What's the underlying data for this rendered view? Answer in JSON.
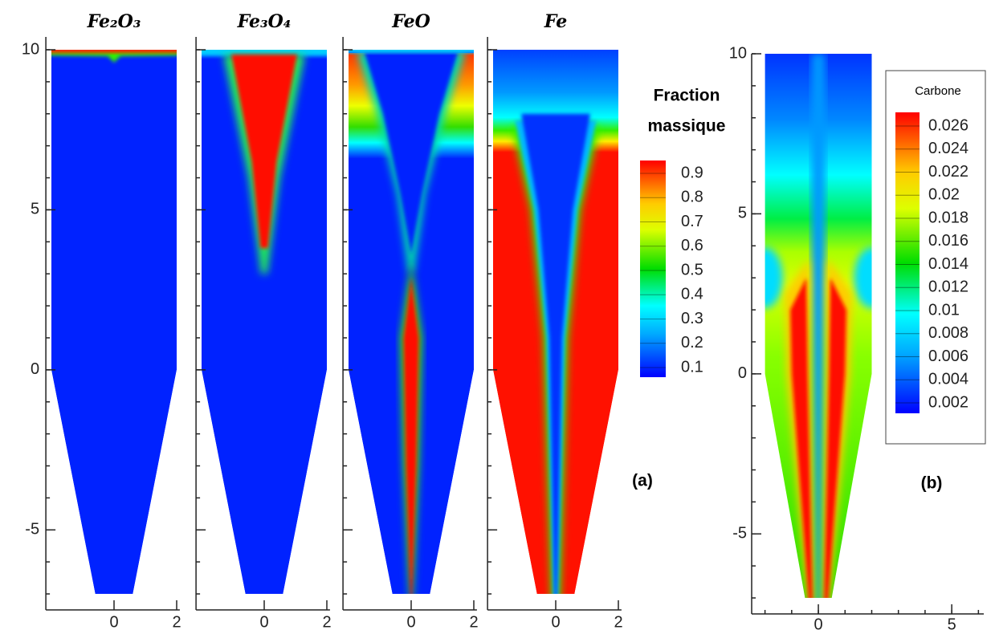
{
  "panel_a": {
    "titles": [
      "Fe₂O₃",
      "Fe₃O₄",
      "FeO",
      "Fe"
    ],
    "ylim": [
      -7.5,
      10
    ],
    "yticks": [
      10,
      5,
      0,
      -5
    ],
    "xticks": [
      0,
      2
    ],
    "colorbar": {
      "title_lines": [
        "Fraction",
        "massique"
      ],
      "ticks": [
        0.9,
        0.8,
        0.7,
        0.6,
        0.5,
        0.4,
        0.3,
        0.2,
        0.1
      ]
    },
    "label": "(a)"
  },
  "panel_b": {
    "ylim": [
      -7.5,
      10
    ],
    "xlim": [
      -2.5,
      6.2
    ],
    "yticks": [
      10,
      5,
      0,
      -5
    ],
    "xticks": [
      0,
      5
    ],
    "colorbar": {
      "title": "Carbone",
      "ticks": [
        0.026,
        0.024,
        0.022,
        0.02,
        0.018,
        0.016,
        0.014,
        0.012,
        0.01,
        0.008,
        0.006,
        0.004,
        0.002
      ]
    },
    "label": "(b)"
  }
}
